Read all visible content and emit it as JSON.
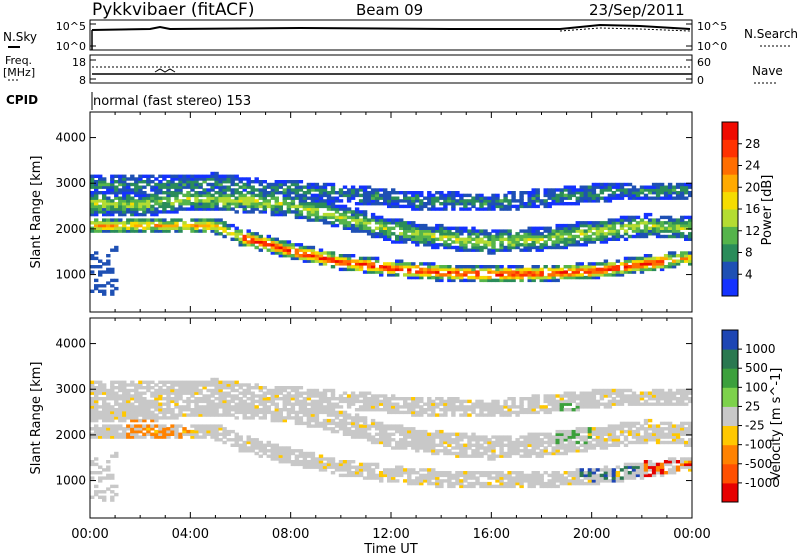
{
  "header": {
    "station": "Pykkvibaer (fitACF)",
    "beam": "Beam 09",
    "date": "23/Sep/2011"
  },
  "noise_panel": {
    "left_label": "N.Sky",
    "left_ticks": [
      "10^5",
      "10^0"
    ],
    "right_label": "N.Search",
    "right_ticks": [
      "10^5",
      "10^0"
    ]
  },
  "freq_panel": {
    "left_label_1": "Freq.",
    "left_label_2": "[MHz]",
    "left_ticks": [
      "18",
      "8"
    ],
    "right_label": "Nave",
    "right_ticks": [
      "60",
      "0"
    ]
  },
  "cpid": {
    "label": "CPID",
    "value": "normal (fast stereo) 153"
  },
  "x_axis": {
    "ticks": [
      "00:00",
      "04:00",
      "08:00",
      "12:00",
      "16:00",
      "20:00",
      "00:00"
    ],
    "label": "Time UT"
  },
  "power_panel": {
    "ylabel": "Slant Range [km]",
    "yticks": [
      "1000",
      "2000",
      "3000",
      "4000"
    ],
    "colorbar_label": "Power [dB]",
    "colorbar_ticks": [
      "4",
      "8",
      "12",
      "16",
      "20",
      "24",
      "28"
    ],
    "colors": [
      "#1432ff",
      "#1e50b4",
      "#2a8c5a",
      "#55b44b",
      "#b4dc32",
      "#f5dc00",
      "#ffaa00",
      "#ff6e00",
      "#ff3200",
      "#f00a00"
    ]
  },
  "velocity_panel": {
    "ylabel": "Slant Range [km]",
    "yticks": [
      "1000",
      "2000",
      "3000",
      "4000"
    ],
    "colorbar_label": "Velocity [m s^-1]",
    "colorbar_ticks": [
      "1000",
      "500",
      "100",
      "25",
      "-25",
      "-100",
      "-500",
      "-1000"
    ],
    "colors": [
      "#1e46b4",
      "#2a7850",
      "#3ca03c",
      "#7dd24b",
      "#c8c8c8",
      "#ffc800",
      "#ff8200",
      "#ff5000",
      "#e60000"
    ]
  },
  "chart_data": {
    "type": "heatmap",
    "x_range_hours": [
      0,
      24
    ],
    "y_range_km": [
      180,
      4560
    ],
    "features": [
      {
        "name": "main_band",
        "points": [
          [
            5,
            2050
          ],
          [
            6,
            1800
          ],
          [
            8,
            1500
          ],
          [
            10,
            1250
          ],
          [
            12,
            1120
          ],
          [
            14,
            1020
          ],
          [
            16,
            980
          ],
          [
            18,
            1000
          ],
          [
            20,
            1050
          ],
          [
            22,
            1200
          ],
          [
            24,
            1350
          ]
        ]
      },
      {
        "name": "upper_band",
        "points": [
          [
            0,
            2550
          ],
          [
            2,
            2500
          ],
          [
            4,
            2650
          ],
          [
            6,
            2600
          ],
          [
            8,
            2500
          ],
          [
            10,
            2250
          ],
          [
            12,
            1950
          ],
          [
            14,
            1800
          ],
          [
            16,
            1700
          ],
          [
            18,
            1750
          ],
          [
            20,
            1900
          ],
          [
            22,
            2050
          ],
          [
            24,
            2000
          ]
        ]
      },
      {
        "name": "top_band",
        "points": [
          [
            0,
            2950
          ],
          [
            3,
            2950
          ],
          [
            5,
            3000
          ],
          [
            7,
            2850
          ],
          [
            9,
            2800
          ],
          [
            11,
            2700
          ],
          [
            13,
            2600
          ],
          [
            16,
            2550
          ],
          [
            19,
            2700
          ],
          [
            21,
            2800
          ],
          [
            24,
            2800
          ]
        ]
      }
    ]
  }
}
